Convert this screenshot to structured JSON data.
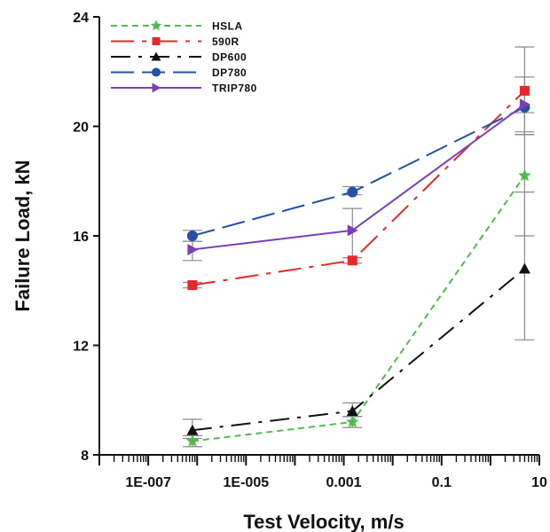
{
  "chart_data": {
    "type": "line",
    "xlabel": "Test Velocity, m/s",
    "ylabel": "Failure Load, kN",
    "x_scale": "log",
    "xlim": [
      1e-08,
      10
    ],
    "ylim": [
      8,
      24
    ],
    "x_ticks": [
      1e-07,
      1e-05,
      0.001,
      0.1,
      10
    ],
    "x_tick_labels": [
      "1E-007",
      "1E-005",
      "0.001",
      "0.1",
      "10"
    ],
    "y_ticks": [
      8,
      12,
      16,
      20,
      24
    ],
    "y_tick_labels": [
      "8",
      "12",
      "16",
      "20",
      "24"
    ],
    "legend_position": "top-left",
    "x": [
      8e-07,
      0.0015,
      5
    ],
    "series": [
      {
        "name": "HSLA",
        "values": [
          8.5,
          9.2,
          18.2
        ],
        "error_low": [
          8.3,
          9.0,
          16.0
        ],
        "error_high": [
          8.7,
          9.4,
          19.8
        ],
        "color": "#4dbb4d",
        "dash": "7 5",
        "marker": "star"
      },
      {
        "name": "590R",
        "values": [
          14.2,
          15.1,
          21.3
        ],
        "error_low": [
          14.1,
          15.0,
          20.5
        ],
        "error_high": [
          14.3,
          15.2,
          21.8
        ],
        "color": "#e8272a",
        "dash": "26 9 5 9",
        "marker": "square"
      },
      {
        "name": "DP600",
        "values": [
          8.9,
          9.6,
          14.8
        ],
        "error_low": [
          8.6,
          9.4,
          12.2
        ],
        "error_high": [
          9.3,
          9.9,
          17.6
        ],
        "color": "#111111",
        "dash": "22 9 4 9",
        "marker": "triangle"
      },
      {
        "name": "DP780",
        "values": [
          16.0,
          17.6,
          20.7
        ],
        "error_low": [
          15.8,
          17.5,
          19.7
        ],
        "error_high": [
          16.2,
          17.8,
          21.8
        ],
        "color": "#2450a8",
        "dash": "26 9",
        "marker": "circle"
      },
      {
        "name": "TRIP780",
        "values": [
          15.5,
          16.2,
          20.8
        ],
        "error_low": [
          15.1,
          15.2,
          19.7
        ],
        "error_high": [
          15.8,
          17.0,
          22.9
        ],
        "color": "#7a3fb8",
        "dash": "",
        "marker": "triangle-right"
      }
    ]
  }
}
